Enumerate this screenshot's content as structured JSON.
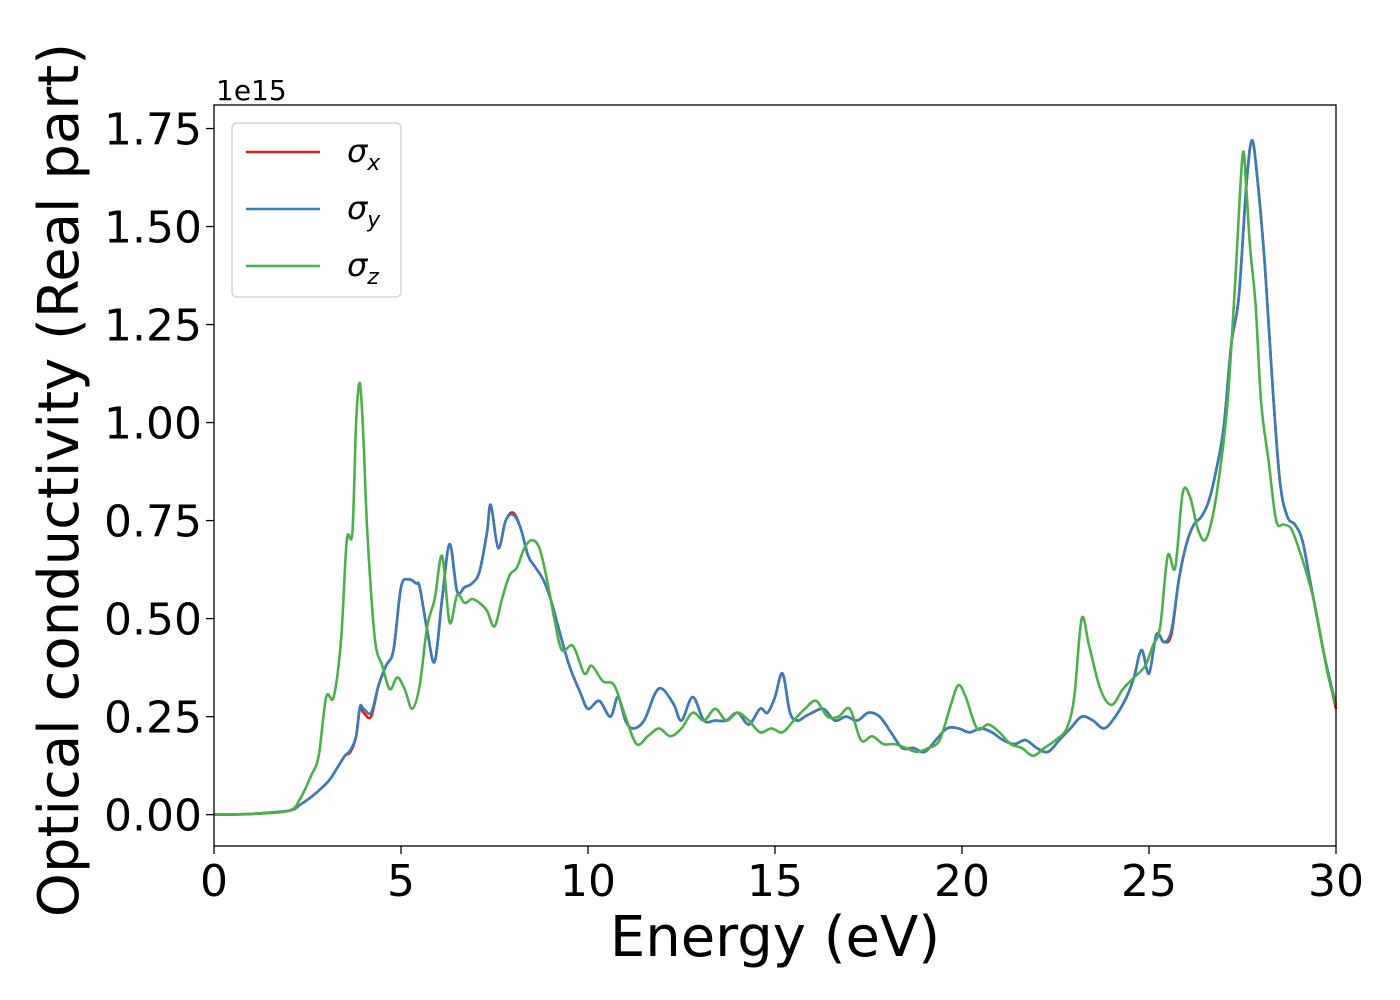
{
  "chart_data": {
    "type": "line",
    "xlabel": "Energy (eV)",
    "ylabel": "Optical conductivity (Real part)",
    "y_multiplier": "1e15",
    "xlim": [
      0,
      30
    ],
    "ylim": [
      -0.08,
      1.81
    ],
    "xticks": [
      0,
      5,
      10,
      15,
      20,
      25,
      30
    ],
    "xtick_labels": [
      "0",
      "5",
      "10",
      "15",
      "20",
      "25",
      "30"
    ],
    "yticks": [
      0.0,
      0.25,
      0.5,
      0.75,
      1.0,
      1.25,
      1.5,
      1.75
    ],
    "ytick_labels": [
      "0.00",
      "0.25",
      "0.50",
      "0.75",
      "1.00",
      "1.25",
      "1.50",
      "1.75"
    ],
    "grid": false,
    "legend_position": "top-left",
    "series": [
      {
        "name": "σx",
        "symbol": "σ",
        "sub": "x",
        "color": "#e41a1c",
        "x": [
          0,
          1,
          2,
          2.3,
          2.6,
          2.9,
          3.1,
          3.3,
          3.5,
          3.65,
          3.8,
          3.9,
          4.0,
          4.2,
          4.4,
          4.6,
          4.8,
          5.0,
          5.2,
          5.4,
          5.5,
          5.7,
          5.9,
          6.1,
          6.3,
          6.5,
          6.7,
          6.9,
          7.1,
          7.3,
          7.4,
          7.6,
          7.8,
          8.0,
          8.2,
          8.4,
          8.6,
          8.8,
          9.0,
          9.2,
          9.5,
          9.8,
          10.0,
          10.3,
          10.6,
          10.8,
          11.0,
          11.2,
          11.5,
          11.8,
          12.0,
          12.3,
          12.5,
          12.8,
          13.1,
          13.4,
          13.7,
          14.0,
          14.3,
          14.6,
          14.8,
          15.0,
          15.2,
          15.4,
          15.6,
          15.8,
          16.0,
          16.3,
          16.6,
          16.9,
          17.2,
          17.5,
          17.8,
          18.1,
          18.4,
          18.7,
          19.0,
          19.3,
          19.6,
          19.9,
          20.2,
          20.5,
          20.8,
          21.1,
          21.4,
          21.7,
          22.0,
          22.3,
          22.6,
          22.9,
          23.2,
          23.5,
          23.8,
          24.1,
          24.4,
          24.6,
          24.8,
          25.0,
          25.2,
          25.4,
          25.6,
          25.8,
          26.0,
          26.2,
          26.4,
          26.6,
          26.8,
          27.0,
          27.2,
          27.4,
          27.6,
          27.75,
          27.9,
          28.1,
          28.3,
          28.5,
          28.7,
          28.9,
          29.1,
          29.3,
          29.5,
          29.7,
          30.0
        ],
        "y": [
          0,
          0.002,
          0.01,
          0.025,
          0.045,
          0.07,
          0.09,
          0.12,
          0.15,
          0.16,
          0.2,
          0.27,
          0.26,
          0.25,
          0.33,
          0.38,
          0.42,
          0.58,
          0.6,
          0.59,
          0.58,
          0.47,
          0.39,
          0.55,
          0.69,
          0.57,
          0.58,
          0.59,
          0.62,
          0.72,
          0.79,
          0.68,
          0.75,
          0.77,
          0.73,
          0.66,
          0.63,
          0.6,
          0.55,
          0.48,
          0.38,
          0.31,
          0.27,
          0.29,
          0.25,
          0.3,
          0.24,
          0.22,
          0.24,
          0.31,
          0.32,
          0.28,
          0.24,
          0.3,
          0.24,
          0.24,
          0.24,
          0.26,
          0.23,
          0.27,
          0.26,
          0.3,
          0.36,
          0.26,
          0.24,
          0.25,
          0.26,
          0.27,
          0.24,
          0.25,
          0.24,
          0.26,
          0.25,
          0.21,
          0.17,
          0.17,
          0.16,
          0.19,
          0.22,
          0.22,
          0.21,
          0.22,
          0.21,
          0.19,
          0.18,
          0.19,
          0.17,
          0.16,
          0.19,
          0.22,
          0.25,
          0.24,
          0.22,
          0.25,
          0.3,
          0.35,
          0.42,
          0.36,
          0.46,
          0.44,
          0.46,
          0.6,
          0.69,
          0.74,
          0.76,
          0.8,
          0.88,
          0.99,
          1.2,
          1.32,
          1.6,
          1.72,
          1.62,
          1.4,
          1.1,
          0.85,
          0.76,
          0.74,
          0.7,
          0.6,
          0.5,
          0.4,
          0.27
        ]
      },
      {
        "name": "σy",
        "symbol": "σ",
        "sub": "y",
        "color": "#377eb8",
        "x": [
          0,
          1,
          2,
          2.3,
          2.6,
          2.9,
          3.1,
          3.3,
          3.5,
          3.65,
          3.8,
          3.9,
          4.0,
          4.2,
          4.4,
          4.6,
          4.8,
          5.0,
          5.2,
          5.4,
          5.5,
          5.7,
          5.9,
          6.1,
          6.3,
          6.5,
          6.7,
          6.9,
          7.1,
          7.3,
          7.4,
          7.6,
          7.8,
          8.0,
          8.2,
          8.4,
          8.6,
          8.8,
          9.0,
          9.2,
          9.5,
          9.8,
          10.0,
          10.3,
          10.6,
          10.8,
          11.0,
          11.2,
          11.5,
          11.8,
          12.0,
          12.3,
          12.5,
          12.8,
          13.1,
          13.4,
          13.7,
          14.0,
          14.3,
          14.6,
          14.8,
          15.0,
          15.2,
          15.4,
          15.6,
          15.8,
          16.0,
          16.3,
          16.6,
          16.9,
          17.2,
          17.5,
          17.8,
          18.1,
          18.4,
          18.7,
          19.0,
          19.3,
          19.6,
          19.9,
          20.2,
          20.5,
          20.8,
          21.1,
          21.4,
          21.7,
          22.0,
          22.3,
          22.6,
          22.9,
          23.2,
          23.5,
          23.8,
          24.1,
          24.4,
          24.6,
          24.8,
          25.0,
          25.2,
          25.4,
          25.6,
          25.8,
          26.0,
          26.2,
          26.4,
          26.6,
          26.8,
          27.0,
          27.2,
          27.4,
          27.6,
          27.75,
          27.9,
          28.1,
          28.3,
          28.5,
          28.7,
          28.9,
          29.1,
          29.3,
          29.5,
          29.7,
          30.0
        ],
        "y": [
          0,
          0.002,
          0.01,
          0.025,
          0.045,
          0.07,
          0.09,
          0.12,
          0.15,
          0.165,
          0.2,
          0.275,
          0.27,
          0.26,
          0.33,
          0.38,
          0.42,
          0.58,
          0.6,
          0.59,
          0.58,
          0.47,
          0.39,
          0.55,
          0.69,
          0.57,
          0.58,
          0.59,
          0.62,
          0.72,
          0.79,
          0.68,
          0.75,
          0.765,
          0.73,
          0.66,
          0.63,
          0.6,
          0.55,
          0.48,
          0.38,
          0.31,
          0.27,
          0.29,
          0.25,
          0.3,
          0.24,
          0.22,
          0.24,
          0.31,
          0.32,
          0.28,
          0.24,
          0.3,
          0.24,
          0.24,
          0.24,
          0.26,
          0.23,
          0.27,
          0.26,
          0.3,
          0.36,
          0.26,
          0.24,
          0.25,
          0.26,
          0.27,
          0.24,
          0.25,
          0.24,
          0.26,
          0.25,
          0.21,
          0.17,
          0.17,
          0.16,
          0.19,
          0.22,
          0.22,
          0.21,
          0.22,
          0.21,
          0.19,
          0.18,
          0.19,
          0.17,
          0.16,
          0.19,
          0.22,
          0.25,
          0.24,
          0.22,
          0.25,
          0.3,
          0.35,
          0.42,
          0.36,
          0.46,
          0.44,
          0.47,
          0.6,
          0.69,
          0.74,
          0.76,
          0.8,
          0.88,
          0.99,
          1.2,
          1.32,
          1.6,
          1.72,
          1.62,
          1.4,
          1.1,
          0.85,
          0.76,
          0.74,
          0.7,
          0.6,
          0.5,
          0.4,
          0.28
        ]
      },
      {
        "name": "σz",
        "symbol": "σ",
        "sub": "z",
        "color": "#4daf4a",
        "x": [
          0,
          1,
          2,
          2.3,
          2.6,
          2.8,
          3.0,
          3.2,
          3.4,
          3.55,
          3.7,
          3.8,
          3.9,
          4.0,
          4.1,
          4.3,
          4.5,
          4.7,
          4.9,
          5.1,
          5.3,
          5.5,
          5.7,
          5.9,
          6.1,
          6.3,
          6.5,
          6.7,
          6.9,
          7.1,
          7.3,
          7.5,
          7.7,
          7.9,
          8.1,
          8.3,
          8.5,
          8.7,
          8.9,
          9.1,
          9.3,
          9.6,
          9.9,
          10.1,
          10.4,
          10.7,
          11.0,
          11.3,
          11.6,
          11.9,
          12.2,
          12.5,
          12.8,
          13.1,
          13.4,
          13.7,
          14.0,
          14.3,
          14.6,
          14.9,
          15.2,
          15.5,
          15.8,
          16.1,
          16.4,
          16.7,
          17.0,
          17.3,
          17.6,
          17.9,
          18.2,
          18.5,
          18.8,
          19.1,
          19.4,
          19.7,
          19.9,
          20.1,
          20.4,
          20.7,
          21.0,
          21.3,
          21.6,
          21.9,
          22.2,
          22.5,
          22.8,
          23.0,
          23.2,
          23.4,
          23.7,
          24.0,
          24.3,
          24.6,
          24.9,
          25.1,
          25.3,
          25.5,
          25.7,
          25.9,
          26.1,
          26.3,
          26.5,
          26.7,
          26.9,
          27.1,
          27.3,
          27.5,
          27.6,
          27.7,
          27.85,
          28.0,
          28.2,
          28.4,
          28.6,
          28.8,
          29.0,
          29.2,
          29.4,
          29.6,
          29.8,
          30.0
        ],
        "y": [
          0,
          0.002,
          0.01,
          0.04,
          0.1,
          0.15,
          0.3,
          0.3,
          0.45,
          0.7,
          0.72,
          1.0,
          1.1,
          0.95,
          0.72,
          0.45,
          0.38,
          0.32,
          0.35,
          0.32,
          0.27,
          0.33,
          0.48,
          0.55,
          0.66,
          0.49,
          0.56,
          0.54,
          0.55,
          0.54,
          0.52,
          0.48,
          0.55,
          0.61,
          0.63,
          0.68,
          0.7,
          0.68,
          0.6,
          0.5,
          0.42,
          0.43,
          0.36,
          0.38,
          0.34,
          0.33,
          0.25,
          0.18,
          0.2,
          0.22,
          0.2,
          0.22,
          0.26,
          0.24,
          0.27,
          0.24,
          0.26,
          0.24,
          0.21,
          0.22,
          0.21,
          0.24,
          0.27,
          0.29,
          0.25,
          0.25,
          0.27,
          0.19,
          0.2,
          0.18,
          0.18,
          0.17,
          0.16,
          0.17,
          0.19,
          0.28,
          0.33,
          0.3,
          0.22,
          0.23,
          0.21,
          0.18,
          0.17,
          0.15,
          0.17,
          0.19,
          0.22,
          0.3,
          0.5,
          0.43,
          0.32,
          0.28,
          0.32,
          0.35,
          0.38,
          0.43,
          0.48,
          0.66,
          0.63,
          0.82,
          0.81,
          0.73,
          0.7,
          0.76,
          0.88,
          1.05,
          1.35,
          1.68,
          1.6,
          1.45,
          1.3,
          1.05,
          0.9,
          0.75,
          0.74,
          0.73,
          0.68,
          0.62,
          0.55,
          0.45,
          0.35,
          0.28
        ]
      }
    ]
  }
}
